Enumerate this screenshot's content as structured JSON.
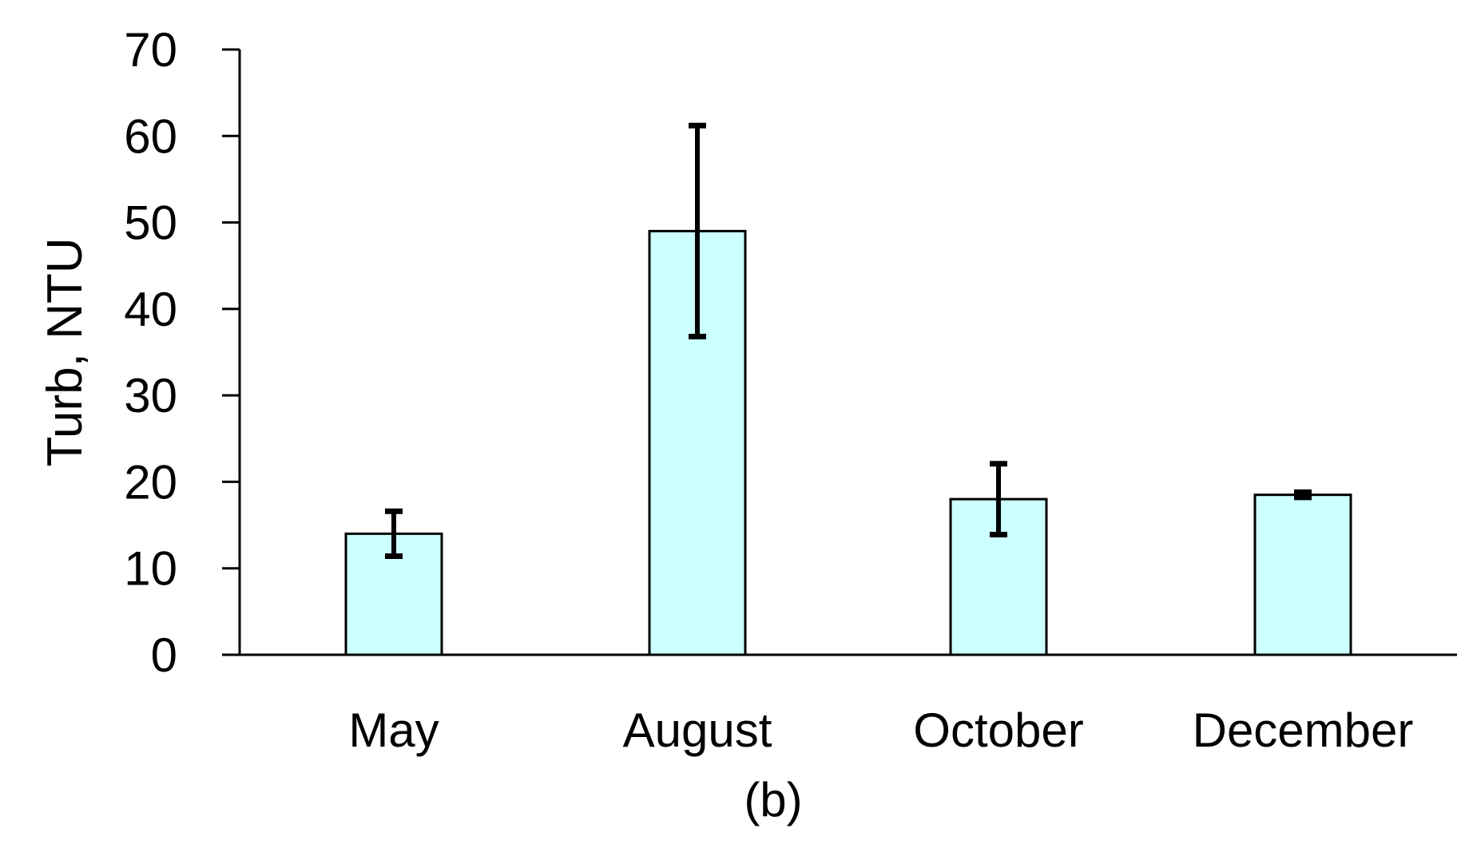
{
  "chart_data": {
    "type": "bar",
    "title": "",
    "xlabel": "",
    "ylabel": "Turb, NTU",
    "panel_label": "(b)",
    "categories": [
      "May",
      "August",
      "October",
      "December"
    ],
    "values": [
      14,
      49,
      18,
      18.5
    ],
    "errors": [
      2.6,
      12.2,
      4.1,
      0.3
    ],
    "ylim": [
      0,
      70
    ],
    "yticks": [
      0,
      10,
      20,
      30,
      40,
      50,
      60,
      70
    ],
    "ytick_labels": [
      "0",
      "10",
      "20",
      "30",
      "40",
      "50",
      "60",
      "70"
    ],
    "grid": false,
    "legend": "none",
    "colors": {
      "bar_fill": "#ccffff",
      "bar_stroke": "#000000",
      "error_bar": "#000000",
      "axis": "#000000"
    }
  }
}
